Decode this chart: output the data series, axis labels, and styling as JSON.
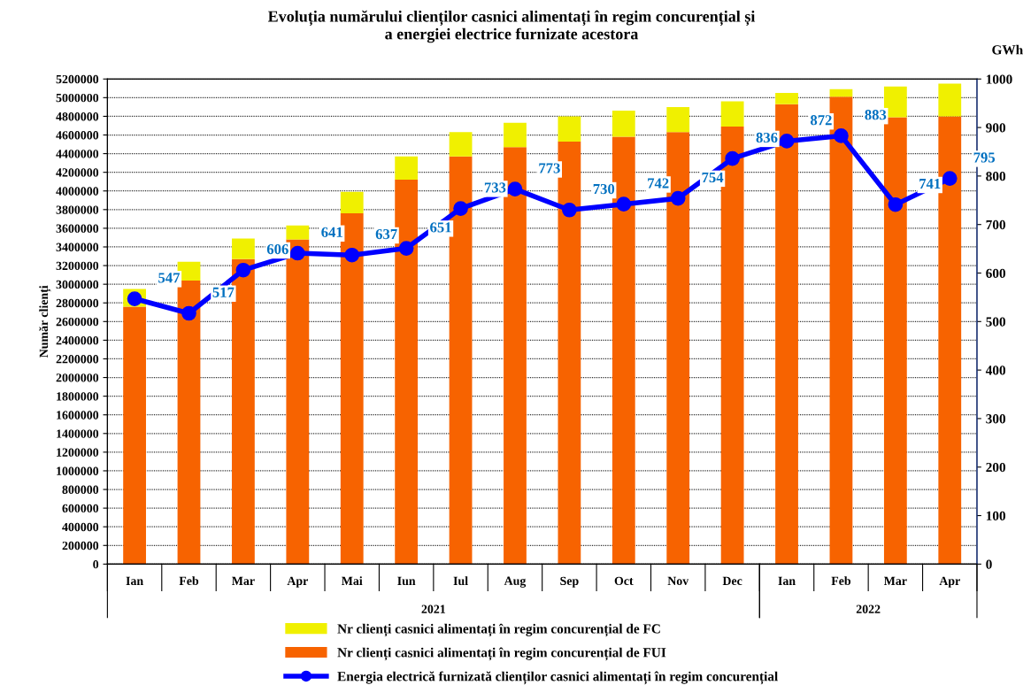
{
  "chart_data": {
    "type": "bar",
    "title": "Evoluția numărului clienților casnici alimentați în regim concurențial și\na energiei electrice furnizate acestora",
    "categories": [
      "Ian",
      "Feb",
      "Mar",
      "Apr",
      "Mai",
      "Iun",
      "Iul",
      "Aug",
      "Sep",
      "Oct",
      "Nov",
      "Dec",
      "Ian",
      "Feb",
      "Mar",
      "Apr"
    ],
    "stacked": true,
    "series": [
      {
        "name": "Nr clienți casnici alimentați în regim concurențial de FUI",
        "color": "#f76300",
        "values": [
          2760000,
          3040000,
          3270000,
          3480000,
          3760000,
          4120000,
          4370000,
          4470000,
          4530000,
          4580000,
          4630000,
          4690000,
          4930000,
          5010000,
          4790000,
          4800000
        ]
      },
      {
        "name": "Nr clienți casnici alimentați în regim concurențial de FC",
        "color": "#f0f000",
        "values": [
          190000,
          200000,
          220000,
          150000,
          230000,
          250000,
          260000,
          260000,
          270000,
          280000,
          270000,
          270000,
          120000,
          80000,
          330000,
          350000
        ]
      },
      {
        "name": "Energia electrică furnizată clienților casnici alimentați în regim concurențial",
        "type": "line",
        "axis": "y2",
        "color": "#0000ff",
        "marker": "circle",
        "data_labels": true,
        "values": [
          547,
          517,
          606,
          641,
          637,
          651,
          733,
          773,
          730,
          742,
          754,
          836,
          872,
          883,
          741,
          795
        ]
      }
    ],
    "ylabel": "Număr clienți",
    "y2label": "GWh",
    "ylim": [
      0,
      5200000
    ],
    "yticks": [
      0,
      200000,
      400000,
      600000,
      800000,
      1000000,
      1200000,
      1400000,
      1600000,
      1800000,
      2000000,
      2200000,
      2400000,
      2600000,
      2800000,
      3000000,
      3200000,
      3400000,
      3600000,
      3800000,
      4000000,
      4200000,
      4400000,
      4600000,
      4800000,
      5000000,
      5200000
    ],
    "y2lim": [
      0,
      1000
    ],
    "y2ticks": [
      0,
      100,
      200,
      300,
      400,
      500,
      600,
      700,
      800,
      900,
      1000
    ],
    "annotations": [
      "2021",
      "2022"
    ],
    "grid": "y",
    "legend": "bottom"
  }
}
